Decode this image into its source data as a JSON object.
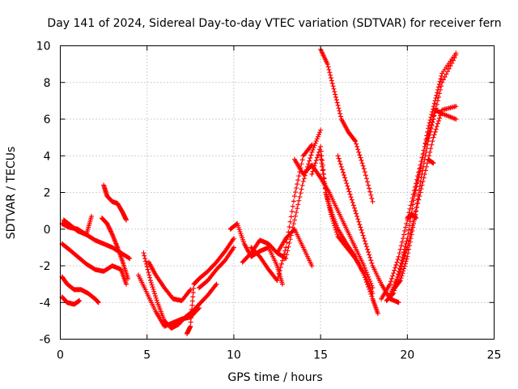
{
  "chart_data": {
    "type": "scatter",
    "title": "Day 141 of 2024, Sidereal Day-to-day VTEC variation (SDTVAR) for receiver fern",
    "xlabel": "GPS time / hours",
    "ylabel": "SDTVAR / TECUs",
    "xlim": [
      0,
      25
    ],
    "ylim": [
      -6,
      10
    ],
    "xticks": [
      0,
      5,
      10,
      15,
      20,
      25
    ],
    "yticks": [
      -6,
      -4,
      -2,
      0,
      2,
      4,
      6,
      8,
      10
    ],
    "grid": true,
    "legend": "none",
    "marker": "plus",
    "color": "#ff0000",
    "series": [
      {
        "x": [
          0.1,
          0.5,
          1.0,
          1.5,
          2.0,
          2.5,
          3.0,
          3.5,
          4.0
        ],
        "y": [
          0.3,
          0.1,
          0.0,
          -0.3,
          -0.6,
          -0.8,
          -1.0,
          -1.3,
          -1.6
        ]
      },
      {
        "x": [
          0.1,
          0.5,
          1.0,
          1.5,
          2.0,
          2.5,
          3.0,
          3.5,
          3.8
        ],
        "y": [
          -0.8,
          -1.1,
          -1.5,
          -1.9,
          -2.2,
          -2.3,
          -2.0,
          -2.2,
          -3.0
        ]
      },
      {
        "x": [
          0.1,
          0.4,
          0.8,
          1.2,
          1.6,
          2.0,
          2.2
        ],
        "y": [
          -2.6,
          -3.0,
          -3.3,
          -3.3,
          -3.5,
          -3.8,
          -4.0
        ]
      },
      {
        "x": [
          0.1,
          0.4,
          0.8,
          1.1
        ],
        "y": [
          -3.7,
          -4.0,
          -4.1,
          -3.9
        ]
      },
      {
        "x": [
          0.2,
          0.6,
          1.0,
          1.5,
          1.8
        ],
        "y": [
          0.5,
          0.2,
          -0.1,
          -0.3,
          0.7
        ]
      },
      {
        "x": [
          2.5,
          2.7,
          3.0,
          3.3,
          3.6,
          3.8
        ],
        "y": [
          2.4,
          1.8,
          1.5,
          1.4,
          0.9,
          0.5
        ]
      },
      {
        "x": [
          2.4,
          2.7,
          3.0,
          3.3,
          3.6,
          3.9
        ],
        "y": [
          0.6,
          0.3,
          -0.3,
          -1.0,
          -1.8,
          -2.7
        ]
      },
      {
        "x": [
          4.5,
          5.0,
          5.5,
          6.0,
          6.5,
          7.0,
          7.5,
          8.0
        ],
        "y": [
          -2.5,
          -3.5,
          -4.5,
          -5.3,
          -5.1,
          -4.9,
          -4.8,
          -4.3
        ]
      },
      {
        "x": [
          4.8,
          5.2,
          5.6,
          6.0,
          6.4,
          6.8,
          7.2,
          7.6,
          8.0,
          8.5,
          9.0
        ],
        "y": [
          -1.3,
          -2.8,
          -4.0,
          -5.0,
          -5.4,
          -5.2,
          -4.8,
          -4.5,
          -4.1,
          -3.6,
          -3.0
        ]
      },
      {
        "x": [
          5.1,
          5.5,
          6.0,
          6.5,
          7.0,
          7.5
        ],
        "y": [
          -1.8,
          -2.5,
          -3.2,
          -3.8,
          -3.9,
          -3.3
        ]
      },
      {
        "x": [
          7.3,
          7.5,
          7.7,
          8.0,
          8.5,
          9.0,
          9.5,
          10.0
        ],
        "y": [
          -5.7,
          -5.3,
          -3.0,
          -2.7,
          -2.3,
          -1.8,
          -1.2,
          -0.5
        ]
      },
      {
        "x": [
          8.0,
          8.5,
          9.0,
          9.5,
          10.0
        ],
        "y": [
          -3.2,
          -2.8,
          -2.2,
          -1.7,
          -1.0
        ]
      },
      {
        "x": [
          9.8,
          10.2,
          10.6,
          11.0,
          11.5,
          12.0,
          12.5,
          12.8
        ],
        "y": [
          0.0,
          0.3,
          -0.8,
          -1.5,
          -1.2,
          -1.0,
          -2.0,
          -3.0
        ]
      },
      {
        "x": [
          10.5,
          11.0,
          11.5,
          12.0,
          12.5,
          13.0,
          13.5,
          14.0,
          14.5,
          15.0
        ],
        "y": [
          -1.8,
          -1.3,
          -0.6,
          -0.8,
          -1.3,
          -1.6,
          0.5,
          2.6,
          4.2,
          5.4
        ]
      },
      {
        "x": [
          11.0,
          11.5,
          12.0,
          12.5,
          13.0,
          13.5,
          14.0,
          14.5
        ],
        "y": [
          -1.0,
          -1.5,
          -2.2,
          -2.8,
          -1.0,
          1.8,
          4.0,
          4.6
        ]
      },
      {
        "x": [
          12.5,
          13.0,
          13.5,
          14.0,
          14.5
        ],
        "y": [
          -1.3,
          -0.5,
          0.0,
          -1.0,
          -2.0
        ]
      },
      {
        "x": [
          13.5,
          14.0,
          14.5,
          15.0,
          15.5,
          16.0,
          16.5,
          17.0,
          17.5,
          18.0
        ],
        "y": [
          3.8,
          3.0,
          3.5,
          2.8,
          2.0,
          1.0,
          0.0,
          -1.0,
          -2.0,
          -3.2
        ]
      },
      {
        "x": [
          14.5,
          15.0,
          15.3,
          15.6,
          16.0,
          16.5,
          17.0,
          17.5,
          18.0,
          18.3
        ],
        "y": [
          3.0,
          4.5,
          2.0,
          1.0,
          0.0,
          -0.8,
          -1.5,
          -2.5,
          -3.8,
          -4.6
        ]
      },
      {
        "x": [
          15.0,
          15.3,
          15.6,
          16.0,
          16.5,
          17.0,
          17.5,
          18.0
        ],
        "y": [
          4.0,
          2.0,
          0.8,
          -0.4,
          -1.0,
          -1.6,
          -2.4,
          -3.5
        ]
      },
      {
        "x": [
          15.0,
          15.4,
          15.8,
          16.2,
          16.6,
          17.0,
          17.5,
          18.0
        ],
        "y": [
          9.8,
          9.0,
          7.5,
          6.0,
          5.3,
          4.8,
          3.3,
          1.5
        ]
      },
      {
        "x": [
          16.0,
          16.5,
          17.0,
          17.5,
          18.0,
          18.5,
          19.0,
          19.5
        ],
        "y": [
          4.0,
          2.5,
          1.0,
          -0.5,
          -2.0,
          -3.0,
          -3.8,
          -4.0
        ]
      },
      {
        "x": [
          18.5,
          19.0,
          19.5,
          20.0,
          20.5,
          21.0,
          21.5,
          22.0,
          22.8
        ],
        "y": [
          -3.8,
          -3.0,
          -1.5,
          0.5,
          2.5,
          4.5,
          6.0,
          8.0,
          9.5
        ]
      },
      {
        "x": [
          18.8,
          19.2,
          19.6,
          20.0,
          20.4,
          20.8,
          21.2,
          21.6,
          22.0,
          22.8
        ],
        "y": [
          -3.9,
          -3.5,
          -2.0,
          -0.5,
          1.8,
          3.5,
          5.5,
          7.0,
          8.5,
          9.6
        ]
      },
      {
        "x": [
          19.0,
          19.5,
          20.0,
          20.5,
          21.0,
          21.5,
          22.0,
          22.8
        ],
        "y": [
          -3.6,
          -2.5,
          -1.0,
          1.0,
          3.0,
          5.0,
          6.5,
          6.7
        ]
      },
      {
        "x": [
          19.2,
          19.6,
          20.0,
          20.4,
          20.8,
          21.2,
          21.6,
          22.0,
          22.8
        ],
        "y": [
          -3.3,
          -2.8,
          -1.5,
          0.5,
          2.8,
          4.8,
          6.5,
          6.3,
          6.0
        ]
      },
      {
        "x": [
          20.0,
          20.3,
          20.5
        ],
        "y": [
          0.6,
          0.8,
          0.6
        ]
      },
      {
        "x": [
          21.2,
          21.5
        ],
        "y": [
          3.8,
          3.6
        ]
      }
    ]
  }
}
